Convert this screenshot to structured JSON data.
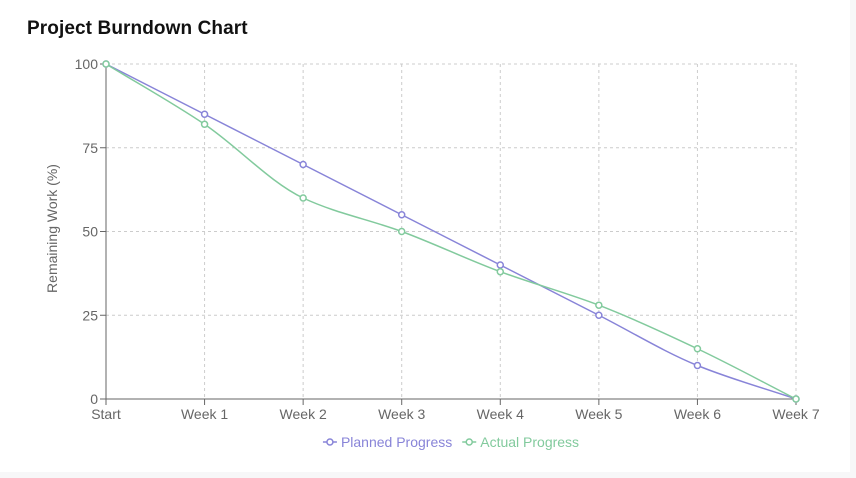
{
  "page": {
    "title": "Project Burndown Chart"
  },
  "chart_data": {
    "type": "line",
    "title": "Project Burndown Chart",
    "xlabel": "",
    "ylabel": "Remaining Work (%)",
    "categories": [
      "Start",
      "Week 1",
      "Week 2",
      "Week 3",
      "Week 4",
      "Week 5",
      "Week 6",
      "Week 7"
    ],
    "ylim": [
      0,
      100
    ],
    "yticks": [
      0,
      25,
      50,
      75,
      100
    ],
    "grid": true,
    "legend_position": "bottom",
    "series": [
      {
        "name": "Planned Progress",
        "color": "#8884d8",
        "values": [
          100,
          85,
          70,
          55,
          40,
          25,
          10,
          0
        ]
      },
      {
        "name": "Actual Progress",
        "color": "#82ca9d",
        "values": [
          100,
          82,
          60,
          50,
          38,
          28,
          15,
          0
        ]
      }
    ]
  }
}
